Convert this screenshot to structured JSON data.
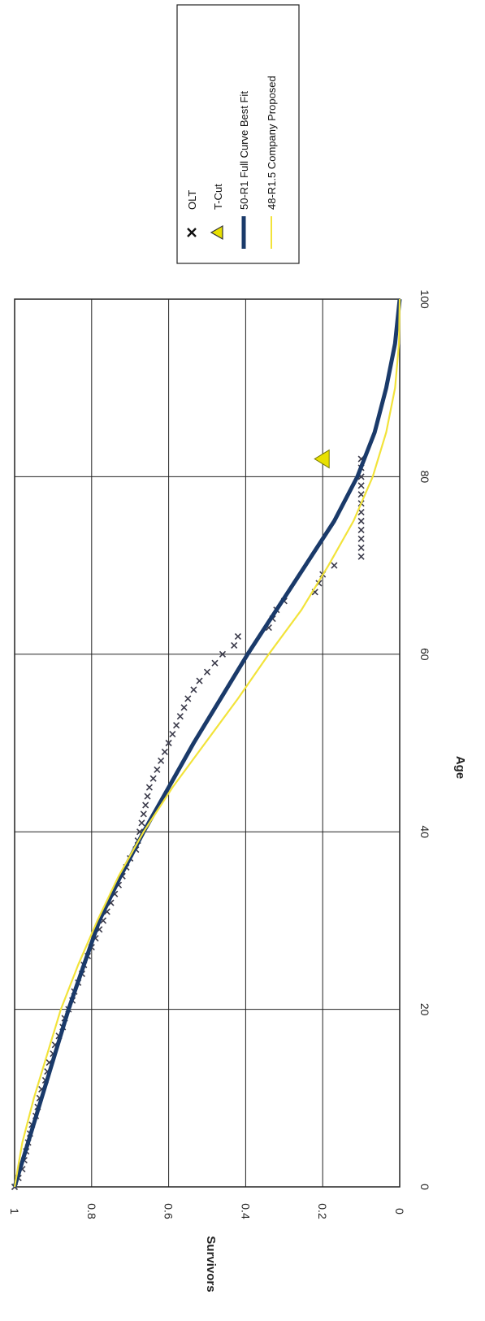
{
  "chart_data": {
    "type": "scatter",
    "xlabel": "Age",
    "ylabel": "Survivors",
    "xlim": [
      0,
      100
    ],
    "ylim": [
      0,
      1
    ],
    "x_ticks": [
      "0",
      "20",
      "40",
      "60",
      "80",
      "100"
    ],
    "y_ticks": [
      "0",
      "0.2",
      "0.4",
      "0.6",
      "0.8",
      "1"
    ],
    "grid": true,
    "legend_position": "right",
    "series": [
      {
        "name": "OLT",
        "kind": "markers",
        "marker": "cross",
        "color": "#3a3a4a",
        "points": [
          [
            0,
            1.0
          ],
          [
            1,
            0.99
          ],
          [
            2,
            0.98
          ],
          [
            3,
            0.975
          ],
          [
            4,
            0.97
          ],
          [
            5,
            0.965
          ],
          [
            6,
            0.96
          ],
          [
            7,
            0.955
          ],
          [
            8,
            0.945
          ],
          [
            9,
            0.94
          ],
          [
            10,
            0.935
          ],
          [
            11,
            0.93
          ],
          [
            12,
            0.92
          ],
          [
            13,
            0.915
          ],
          [
            14,
            0.91
          ],
          [
            15,
            0.9
          ],
          [
            16,
            0.895
          ],
          [
            17,
            0.885
          ],
          [
            18,
            0.875
          ],
          [
            19,
            0.87
          ],
          [
            20,
            0.86
          ],
          [
            21,
            0.85
          ],
          [
            22,
            0.845
          ],
          [
            23,
            0.835
          ],
          [
            24,
            0.825
          ],
          [
            25,
            0.82
          ],
          [
            26,
            0.81
          ],
          [
            27,
            0.8
          ],
          [
            28,
            0.79
          ],
          [
            29,
            0.78
          ],
          [
            30,
            0.77
          ],
          [
            31,
            0.76
          ],
          [
            32,
            0.75
          ],
          [
            33,
            0.74
          ],
          [
            34,
            0.73
          ],
          [
            35,
            0.72
          ],
          [
            36,
            0.71
          ],
          [
            37,
            0.7
          ],
          [
            38,
            0.685
          ],
          [
            39,
            0.68
          ],
          [
            40,
            0.675
          ],
          [
            41,
            0.67
          ],
          [
            42,
            0.665
          ],
          [
            43,
            0.66
          ],
          [
            44,
            0.655
          ],
          [
            45,
            0.65
          ],
          [
            46,
            0.64
          ],
          [
            47,
            0.63
          ],
          [
            48,
            0.62
          ],
          [
            49,
            0.61
          ],
          [
            50,
            0.6
          ],
          [
            51,
            0.59
          ],
          [
            52,
            0.58
          ],
          [
            53,
            0.57
          ],
          [
            54,
            0.56
          ],
          [
            55,
            0.55
          ],
          [
            56,
            0.535
          ],
          [
            57,
            0.52
          ],
          [
            58,
            0.5
          ],
          [
            59,
            0.48
          ],
          [
            60,
            0.46
          ],
          [
            61,
            0.43
          ],
          [
            62,
            0.42
          ],
          [
            63,
            0.34
          ],
          [
            64,
            0.33
          ],
          [
            65,
            0.32
          ],
          [
            66,
            0.3
          ],
          [
            67,
            0.22
          ],
          [
            68,
            0.21
          ],
          [
            69,
            0.2
          ],
          [
            70,
            0.17
          ],
          [
            71,
            0.1
          ],
          [
            72,
            0.1
          ],
          [
            73,
            0.1
          ],
          [
            74,
            0.1
          ],
          [
            75,
            0.1
          ],
          [
            76,
            0.1
          ],
          [
            77,
            0.1
          ],
          [
            78,
            0.1
          ],
          [
            79,
            0.1
          ],
          [
            80,
            0.1
          ],
          [
            81,
            0.1
          ],
          [
            82,
            0.1
          ]
        ]
      },
      {
        "name": "T-Cut",
        "kind": "markers",
        "marker": "triangle",
        "color": "#e8e000",
        "points": [
          [
            82,
            0.2
          ]
        ]
      },
      {
        "name": "50-R1 Full Curve Best Fit",
        "kind": "line",
        "color": "#1a3a6a",
        "points": [
          [
            0,
            1.0
          ],
          [
            5,
            0.965
          ],
          [
            10,
            0.93
          ],
          [
            15,
            0.895
          ],
          [
            20,
            0.86
          ],
          [
            25,
            0.82
          ],
          [
            30,
            0.78
          ],
          [
            35,
            0.725
          ],
          [
            40,
            0.665
          ],
          [
            45,
            0.6
          ],
          [
            50,
            0.535
          ],
          [
            55,
            0.465
          ],
          [
            60,
            0.395
          ],
          [
            65,
            0.32
          ],
          [
            70,
            0.245
          ],
          [
            75,
            0.17
          ],
          [
            80,
            0.11
          ],
          [
            85,
            0.065
          ],
          [
            90,
            0.035
          ],
          [
            95,
            0.012
          ],
          [
            100,
            0.0
          ]
        ]
      },
      {
        "name": "48-R1.5 Company Proposed",
        "kind": "line",
        "color": "#f2e33a",
        "points": [
          [
            0,
            1.0
          ],
          [
            5,
            0.98
          ],
          [
            10,
            0.95
          ],
          [
            15,
            0.915
          ],
          [
            20,
            0.88
          ],
          [
            25,
            0.835
          ],
          [
            30,
            0.785
          ],
          [
            35,
            0.73
          ],
          [
            40,
            0.665
          ],
          [
            45,
            0.59
          ],
          [
            50,
            0.505
          ],
          [
            55,
            0.42
          ],
          [
            60,
            0.34
          ],
          [
            65,
            0.255
          ],
          [
            70,
            0.185
          ],
          [
            75,
            0.12
          ],
          [
            80,
            0.07
          ],
          [
            85,
            0.035
          ],
          [
            90,
            0.012
          ],
          [
            95,
            0.002
          ],
          [
            100,
            0.0
          ]
        ]
      }
    ]
  }
}
